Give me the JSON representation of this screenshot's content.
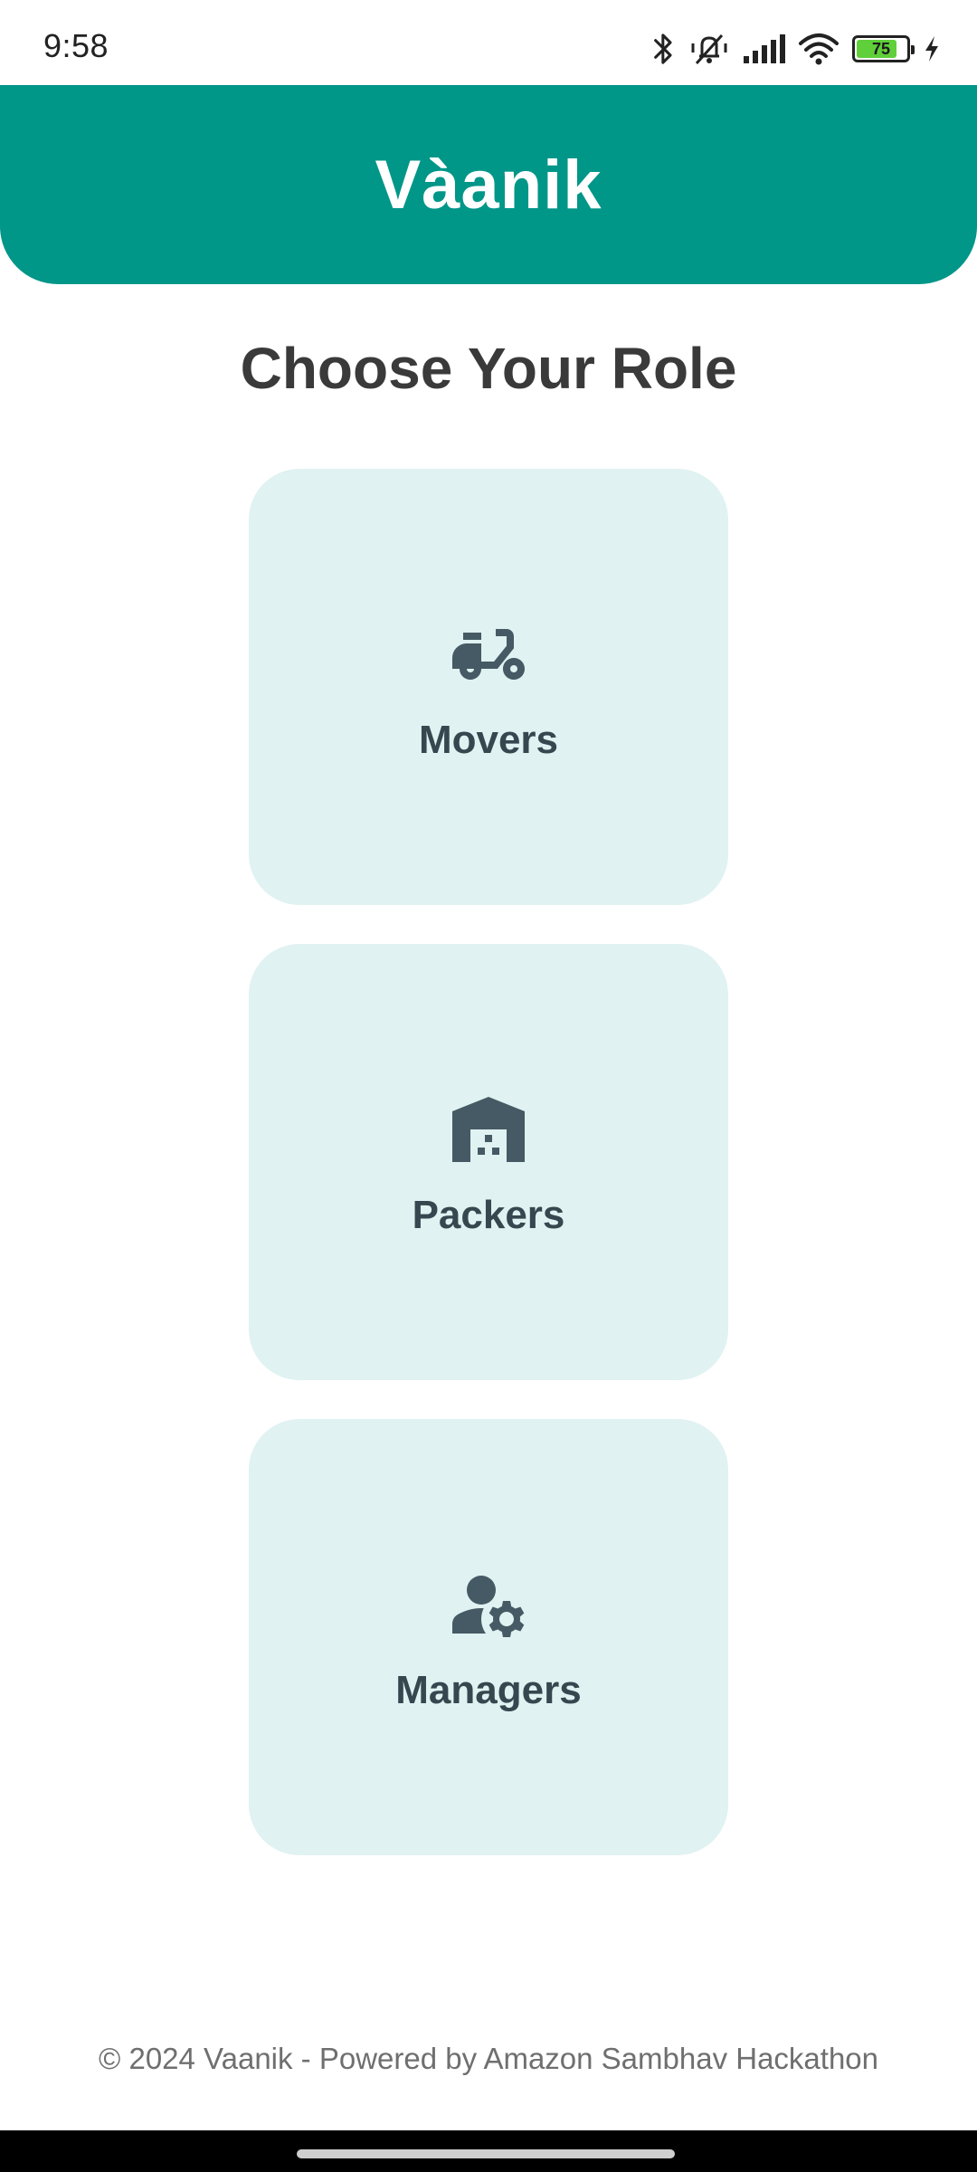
{
  "status_bar": {
    "time": "9:58",
    "battery_level": "75",
    "icons": [
      "bluetooth-icon",
      "mute-vibrate-icon",
      "signal-icon",
      "wifi-icon",
      "battery-icon",
      "charging-icon"
    ]
  },
  "header": {
    "title": "Vàanik",
    "color": "#009688"
  },
  "page": {
    "title": "Choose Your Role"
  },
  "roles": [
    {
      "label": "Movers",
      "icon": "scooter-icon"
    },
    {
      "label": "Packers",
      "icon": "warehouse-icon"
    },
    {
      "label": "Managers",
      "icon": "manage-accounts-icon"
    }
  ],
  "footer": {
    "text": "© 2024 Vaanik - Powered by Amazon Sambhav Hackathon"
  },
  "colors": {
    "accent": "#009688",
    "card_bg": "#e0f2f1",
    "icon": "#455a64"
  }
}
